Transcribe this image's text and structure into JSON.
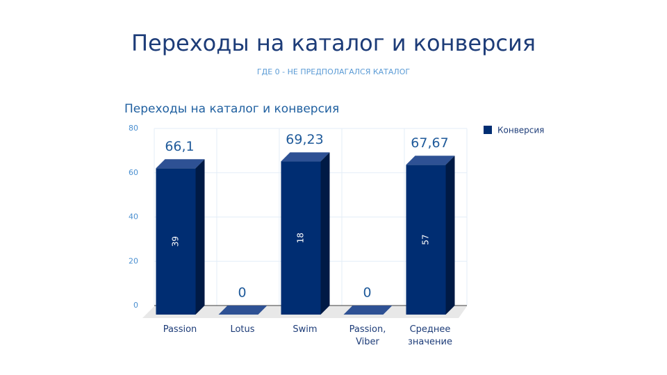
{
  "title": "Переходы на каталог и конверсия",
  "subtitle": "ГДЕ 0 - НЕ ПРЕДПОЛАГАЛСЯ КАТАЛОГ",
  "chart_data": {
    "type": "bar3d",
    "title": "Переходы на каталог и конверсия",
    "categories": [
      "Passion",
      "Lotus",
      "Swim",
      "Passion, Viber",
      "Среднее значение"
    ],
    "series": [
      {
        "name": "Конверсия",
        "color": "#002d72",
        "values": [
          66.1,
          0,
          69.23,
          0,
          67.67
        ],
        "value_labels": [
          "66,1",
          "0",
          "69,23",
          "0",
          "67,67"
        ]
      }
    ],
    "bar_labels": [
      39,
      null,
      18,
      null,
      57
    ],
    "ylim": [
      0,
      80
    ],
    "yticks": [
      0,
      20,
      40,
      60,
      80
    ],
    "grid": true,
    "legend": "right"
  }
}
